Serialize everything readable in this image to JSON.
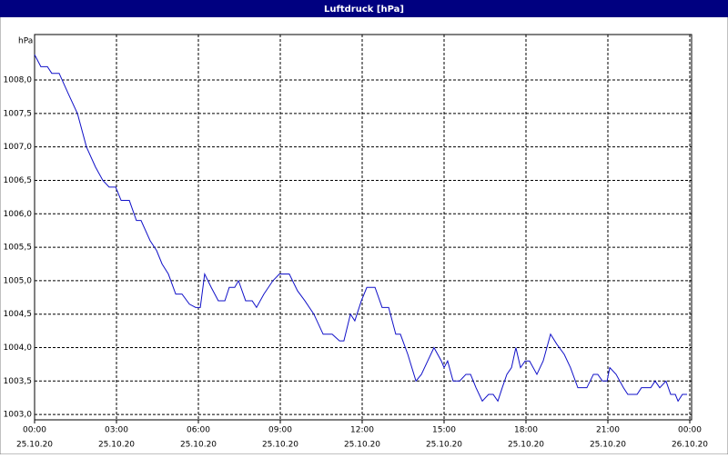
{
  "chart_data": {
    "type": "line",
    "title": "Luftdruck [hPa]",
    "y_label": "hPa",
    "xlim": [
      0,
      24
    ],
    "ylim": [
      1002.92,
      1008.68
    ],
    "xticks": [
      {
        "value": 0,
        "label": "00:00"
      },
      {
        "value": 3,
        "label": "03:00"
      },
      {
        "value": 6,
        "label": "06:00"
      },
      {
        "value": 9,
        "label": "09:00"
      },
      {
        "value": 12,
        "label": "12:00"
      },
      {
        "value": 15,
        "label": "15:00"
      },
      {
        "value": 18,
        "label": "18:00"
      },
      {
        "value": 21,
        "label": "21:00"
      },
      {
        "value": 24,
        "label": "00:00"
      }
    ],
    "xtick_dates": [
      "25.10.20",
      "25.10.20",
      "25.10.20",
      "25.10.20",
      "25.10.20",
      "25.10.20",
      "25.10.20",
      "25.10.20",
      "26.10.20"
    ],
    "yticks": [
      {
        "value": 1003,
        "label": "1003,0"
      },
      {
        "value": 1003.5,
        "label": "1003,5"
      },
      {
        "value": 1004,
        "label": "1004,0"
      },
      {
        "value": 1004.5,
        "label": "1004,5"
      },
      {
        "value": 1005,
        "label": "1005,0"
      },
      {
        "value": 1005.5,
        "label": "1005,5"
      },
      {
        "value": 1006,
        "label": "1006,0"
      },
      {
        "value": 1006.5,
        "label": "1006,5"
      },
      {
        "value": 1007,
        "label": "1007,0"
      },
      {
        "value": 1007.5,
        "label": "1007,5"
      },
      {
        "value": 1008,
        "label": "1008,0"
      }
    ],
    "grid": true,
    "x": [
      0,
      0.23,
      0.47,
      0.63,
      0.9,
      1.23,
      1.57,
      1.9,
      2.23,
      2.5,
      2.73,
      2.97,
      3.17,
      3.47,
      3.73,
      3.9,
      4.23,
      4.47,
      4.67,
      4.9,
      5.17,
      5.4,
      5.67,
      5.9,
      6.07,
      6.23,
      6.47,
      6.73,
      6.97,
      7.13,
      7.33,
      7.47,
      7.73,
      7.97,
      8.13,
      8.4,
      8.73,
      8.97,
      9.33,
      9.63,
      9.9,
      10.23,
      10.57,
      10.9,
      11.17,
      11.33,
      11.57,
      11.73,
      11.97,
      12.17,
      12.47,
      12.73,
      12.97,
      13.23,
      13.4,
      13.67,
      13.97,
      14.17,
      14.4,
      14.63,
      14.9,
      15,
      15.13,
      15.33,
      15.57,
      15.8,
      15.97,
      16.17,
      16.4,
      16.63,
      16.8,
      16.97,
      17.13,
      17.3,
      17.47,
      17.63,
      17.8,
      17.97,
      18.13,
      18.4,
      18.63,
      18.9,
      19.13,
      19.4,
      19.63,
      19.9,
      20.23,
      20.47,
      20.63,
      20.8,
      20.97,
      21.07,
      21.3,
      21.57,
      21.73,
      22.07,
      22.23,
      22.57,
      22.73,
      22.9,
      23.13,
      23.3,
      23.47,
      23.57,
      23.73,
      23.9
    ],
    "series": [
      {
        "name": "Luftdruck",
        "color": "#1010c8",
        "values": [
          1008.38,
          1008.2,
          1008.2,
          1008.1,
          1008.1,
          1007.8,
          1007.5,
          1007.0,
          1006.7,
          1006.5,
          1006.4,
          1006.4,
          1006.2,
          1006.2,
          1005.9,
          1005.9,
          1005.6,
          1005.45,
          1005.25,
          1005.1,
          1004.8,
          1004.8,
          1004.65,
          1004.6,
          1004.6,
          1005.1,
          1004.9,
          1004.7,
          1004.7,
          1004.9,
          1004.9,
          1005.0,
          1004.7,
          1004.7,
          1004.6,
          1004.8,
          1005.0,
          1005.1,
          1005.1,
          1004.85,
          1004.7,
          1004.5,
          1004.2,
          1004.2,
          1004.1,
          1004.1,
          1004.5,
          1004.4,
          1004.7,
          1004.9,
          1004.9,
          1004.6,
          1004.6,
          1004.2,
          1004.2,
          1003.9,
          1003.5,
          1003.6,
          1003.8,
          1004.0,
          1003.8,
          1003.7,
          1003.8,
          1003.5,
          1003.5,
          1003.6,
          1003.6,
          1003.4,
          1003.2,
          1003.3,
          1003.3,
          1003.2,
          1003.4,
          1003.6,
          1003.7,
          1004.0,
          1003.7,
          1003.8,
          1003.8,
          1003.6,
          1003.8,
          1004.2,
          1004.05,
          1003.9,
          1003.7,
          1003.4,
          1003.4,
          1003.6,
          1003.6,
          1003.5,
          1003.5,
          1003.7,
          1003.6,
          1003.4,
          1003.3,
          1003.3,
          1003.4,
          1003.4,
          1003.5,
          1003.4,
          1003.5,
          1003.3,
          1003.3,
          1003.2,
          1003.3,
          1003.3
        ]
      }
    ]
  }
}
